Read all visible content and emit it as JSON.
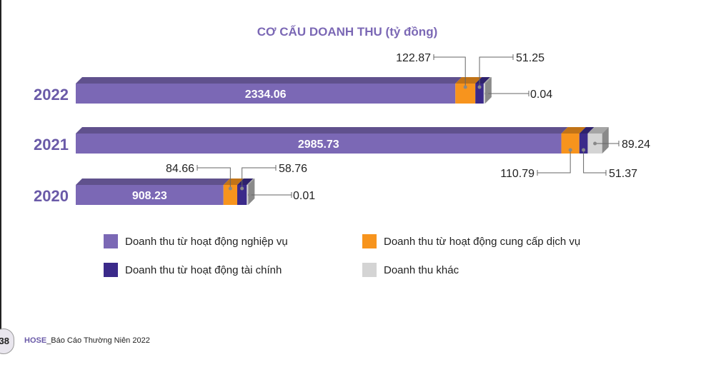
{
  "chart_data": {
    "type": "bar",
    "orientation": "horizontal",
    "stacked": true,
    "title": "CƠ CẤU DOANH THU (tỷ đồng)",
    "categories": [
      "2022",
      "2021",
      "2020"
    ],
    "series": [
      {
        "name": "Doanh thu từ hoạt động nghiệp vụ",
        "color": "#7b68b5",
        "values": [
          2334.06,
          2985.73,
          908.23
        ]
      },
      {
        "name": "Doanh thu từ hoạt động cung cấp dịch vụ",
        "color": "#f7941d",
        "values": [
          122.87,
          110.79,
          84.66
        ]
      },
      {
        "name": "Doanh thu từ hoạt động tài chính",
        "color": "#3b2a8a",
        "values": [
          51.25,
          51.37,
          58.76
        ]
      },
      {
        "name": "Doanh thu khác",
        "color": "#d4d4d4",
        "values": [
          0.04,
          89.24,
          0.01
        ]
      }
    ],
    "labels": {
      "2022": [
        "2334.06",
        "122.87",
        "51.25",
        "0.04"
      ],
      "2021": [
        "2985.73",
        "110.79",
        "51.37",
        "89.24"
      ],
      "2020": [
        "908.23",
        "84.66",
        "58.76",
        "0.01"
      ]
    },
    "legend_position": "bottom"
  },
  "footer": {
    "page_number": "38",
    "brand": "HOSE",
    "text": "_Báo Cáo Thường Niên 2022"
  }
}
